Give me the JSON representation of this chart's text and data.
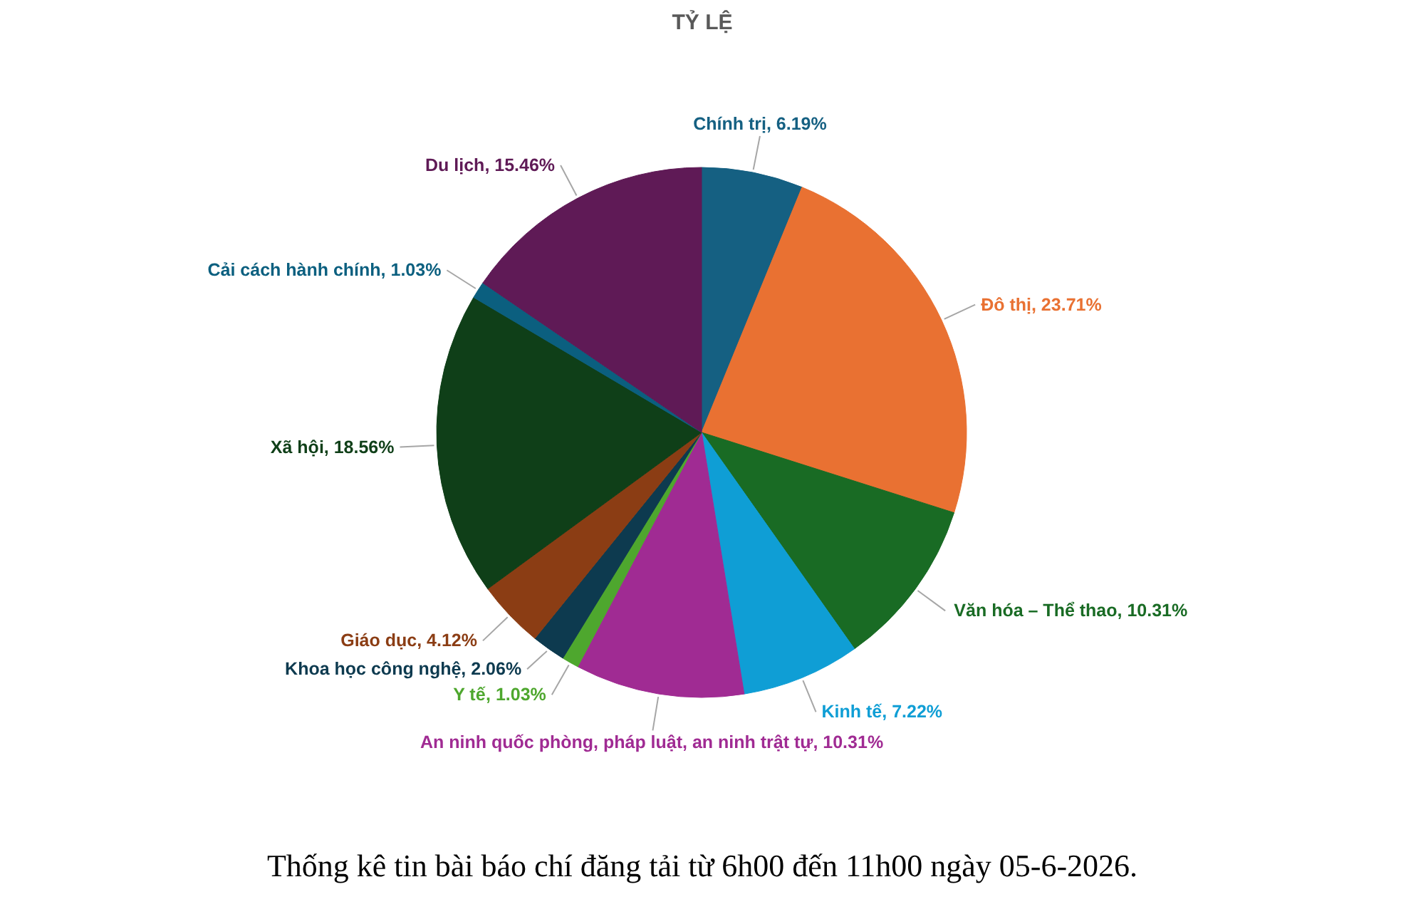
{
  "chart_data": {
    "type": "pie",
    "title": "TỶ LỆ",
    "categories": [
      "Chính trị",
      "Đô thị",
      "Văn hóa – Thể thao",
      "Kinh tế",
      "An ninh quốc phòng, pháp luật, an ninh trật tự",
      "Y tế",
      "Khoa học công nghệ",
      "Giáo dục",
      "Xã hội",
      "Cải cách hành chính",
      "Du lịch"
    ],
    "values": [
      6.19,
      23.71,
      10.31,
      7.22,
      10.31,
      1.03,
      2.06,
      4.12,
      18.56,
      1.03,
      15.46
    ],
    "colors": [
      "#156082",
      "#e97132",
      "#196b24",
      "#0f9ed5",
      "#a02b93",
      "#4ea72e",
      "#0d3a4f",
      "#8b3d14",
      "#0f3f18",
      "#0b5f7f",
      "#5f1a56"
    ],
    "value_labels": [
      ", 6.19%",
      ", 23.71%",
      ", 10.31%",
      ", 7.22%",
      ", 10.31%",
      ", 1.03%",
      ", 2.06%",
      ", 4.12%",
      ", 18.56%",
      ", 1.03%",
      ", 15.46%"
    ],
    "annotations": [
      "Thống kê tin bài báo chí đăng tải từ 6h00 đến 11h00 ngày 05-6-2026."
    ]
  }
}
